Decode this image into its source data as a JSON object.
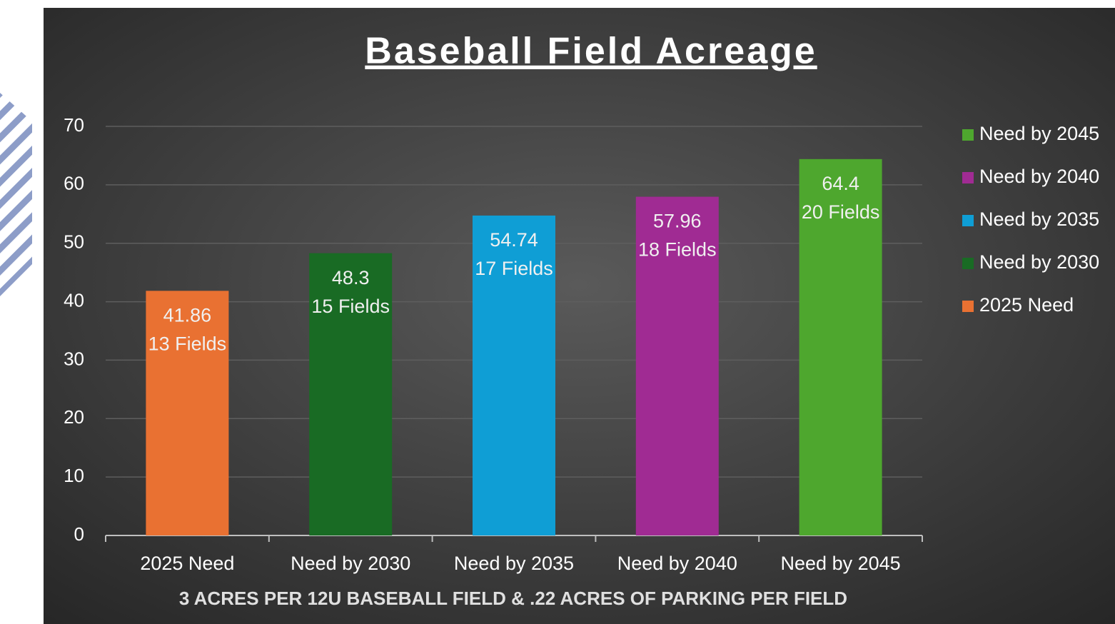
{
  "chart_data": {
    "type": "bar",
    "title": "Baseball Field Acreage",
    "x_axis_title": "3 ACRES PER 12U BASEBALL FIELD & .22 ACRES OF PARKING PER FIELD",
    "categories": [
      "2025 Need",
      "Need by 2030",
      "Need by 2035",
      "Need by 2040",
      "Need by 2045"
    ],
    "values": [
      41.86,
      48.3,
      54.74,
      57.96,
      64.4
    ],
    "field_labels": [
      "13 Fields",
      "15 Fields",
      "17 Fields",
      "18 Fields",
      "20 Fields"
    ],
    "colors": [
      "#e97132",
      "#196b24",
      "#0f9ed5",
      "#a02b93",
      "#4ea72e"
    ],
    "ylim": [
      0,
      70
    ],
    "yticks": [
      0,
      10,
      20,
      30,
      40,
      50,
      60,
      70
    ],
    "grid": true,
    "legend": "right"
  }
}
